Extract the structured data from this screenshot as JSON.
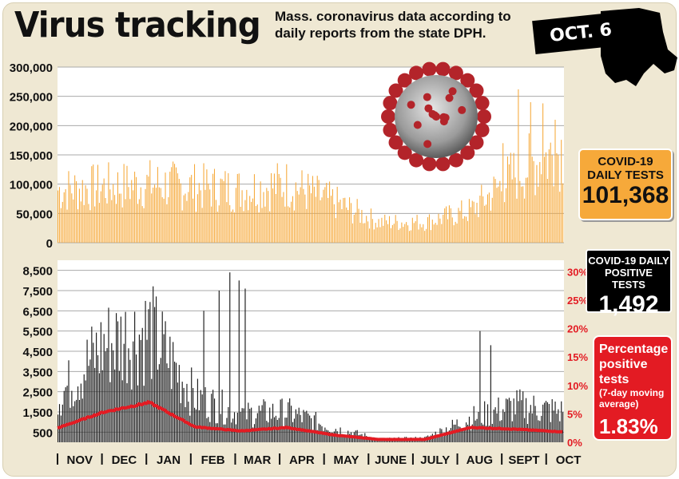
{
  "header": {
    "title": "Virus tracking",
    "subtitle": "Mass. coronavirus data according to daily reports from the state DPH.",
    "date": "OCT. 6"
  },
  "colors": {
    "tests_bar": "#f6a93a",
    "positive_bar": "#1a1a1a",
    "pct_line": "#e31b23",
    "background": "#efe8d3"
  },
  "illustrations": [
    "coronavirus-illustration",
    "massachusetts-map"
  ],
  "callouts": {
    "tests": {
      "label": "COVID-19 DAILY TESTS",
      "value": "101,368"
    },
    "positive": {
      "label": "COVID-19 DAILY POSITIVE TESTS",
      "value": "1,492"
    },
    "pct": {
      "label": "Percentage positive tests",
      "sublabel": "(7-day moving average)",
      "value": "1.83%"
    }
  },
  "chart_data": [
    {
      "type": "bar",
      "id": "daily-tests",
      "title": "COVID-19 DAILY TESTS",
      "ylim": [
        0,
        300000
      ],
      "y_ticks": [
        "0",
        "50,000",
        "100,000",
        "150,000",
        "200,000",
        "250,000",
        "300,000"
      ],
      "x_labels": [
        "NOV",
        "DEC",
        "JAN",
        "FEB",
        "MAR",
        "APR",
        "MAY",
        "JUNE",
        "JULY",
        "AUG",
        "SEPT",
        "OCT"
      ],
      "approx_values_by_month": [
        {
          "month": "NOV",
          "approx": 90000
        },
        {
          "month": "DEC",
          "approx": 95000
        },
        {
          "month": "JAN",
          "approx": 100000
        },
        {
          "month": "FEB",
          "approx": 95000
        },
        {
          "month": "MAR",
          "approx": 90000
        },
        {
          "month": "APR",
          "approx": 100000
        },
        {
          "month": "MAY",
          "approx": 70000
        },
        {
          "month": "JUNE",
          "approx": 35000
        },
        {
          "month": "JULY",
          "approx": 35000
        },
        {
          "month": "AUG",
          "approx": 55000
        },
        {
          "month": "SEPT",
          "approx": 120000
        },
        {
          "month": "OCT",
          "approx": 160000
        }
      ],
      "peak": 262000,
      "last_value": 101368
    },
    {
      "type": "bar",
      "id": "daily-positive",
      "title": "COVID-19 DAILY POSITIVE TESTS",
      "ylim": [
        0,
        9000
      ],
      "y_ticks": [
        "500",
        "1,500",
        "2,500",
        "3,500",
        "4,500",
        "5,500",
        "6,500",
        "7,500",
        "8,500"
      ],
      "x_labels": [
        "NOV",
        "DEC",
        "JAN",
        "FEB",
        "MAR",
        "APR",
        "MAY",
        "JUNE",
        "JULY",
        "AUG",
        "SEPT",
        "OCT"
      ],
      "approx_values_by_month": [
        {
          "month": "NOV",
          "approx": 2200
        },
        {
          "month": "DEC",
          "approx": 4800
        },
        {
          "month": "JAN",
          "approx": 5500
        },
        {
          "month": "FEB",
          "approx": 2200
        },
        {
          "month": "MAR",
          "approx": 1400
        },
        {
          "month": "APR",
          "approx": 1500
        },
        {
          "month": "MAY",
          "approx": 700
        },
        {
          "month": "JUNE",
          "approx": 150
        },
        {
          "month": "JULY",
          "approx": 200
        },
        {
          "month": "AUG",
          "approx": 1200
        },
        {
          "month": "SEPT",
          "approx": 1800
        },
        {
          "month": "OCT",
          "approx": 1500
        }
      ],
      "peak": 8400,
      "last_value": 1492
    },
    {
      "type": "line",
      "id": "pct-positive-7day",
      "title": "Percentage positive tests (7-day moving average)",
      "ylim": [
        0,
        32
      ],
      "y2_ticks": [
        "0%",
        "5%",
        "10%",
        "15%",
        "20%",
        "25%",
        "30%"
      ],
      "x_labels": [
        "NOV",
        "DEC",
        "JAN",
        "FEB",
        "MAR",
        "APR",
        "MAY",
        "JUNE",
        "JULY",
        "AUG",
        "SEPT",
        "OCT"
      ],
      "approx_values_by_month": [
        {
          "month": "NOV",
          "approx": 2.5
        },
        {
          "month": "DEC",
          "approx": 5.3
        },
        {
          "month": "JAN",
          "approx": 7.0
        },
        {
          "month": "FEB",
          "approx": 2.7
        },
        {
          "month": "MAR",
          "approx": 2.0
        },
        {
          "month": "APR",
          "approx": 2.6
        },
        {
          "month": "MAY",
          "approx": 1.3
        },
        {
          "month": "JUNE",
          "approx": 0.5
        },
        {
          "month": "JULY",
          "approx": 0.5
        },
        {
          "month": "AUG",
          "approx": 2.6
        },
        {
          "month": "SEPT",
          "approx": 2.3
        },
        {
          "month": "OCT",
          "approx": 1.83
        }
      ],
      "last_value": 1.83
    }
  ]
}
